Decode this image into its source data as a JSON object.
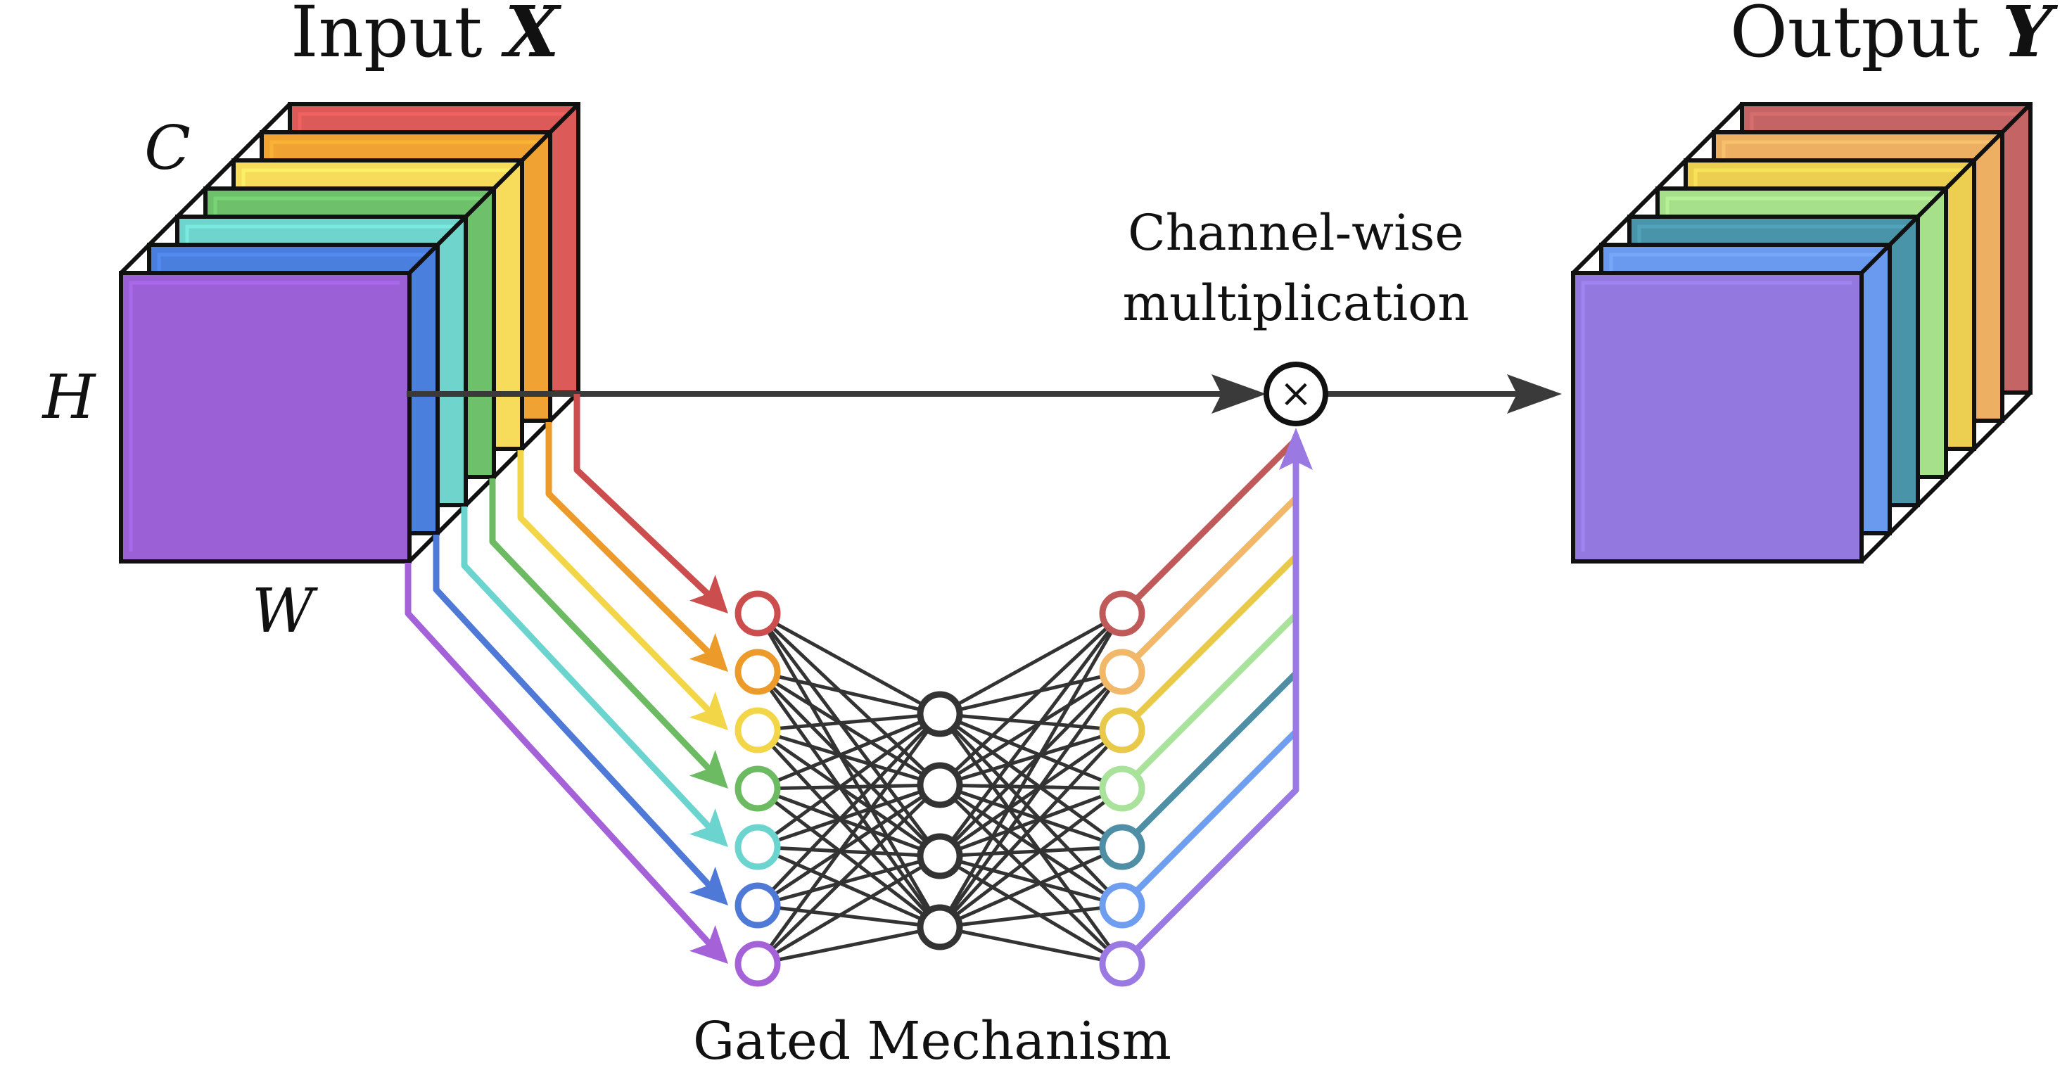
{
  "input": {
    "title_text": "Input",
    "title_var": "X",
    "dim_c": "C",
    "dim_h": "H",
    "dim_w": "W",
    "channel_colors": [
      "#9b5fd6",
      "#4a7fde",
      "#6fd4cc",
      "#6ec06a",
      "#f7dc5c",
      "#f0a232",
      "#dc5a58"
    ]
  },
  "output": {
    "title_text": "Output",
    "title_var": "Y",
    "channel_colors": [
      "#9378e0",
      "#6a9af0",
      "#4a94aa",
      "#a6e08a",
      "#eccf50",
      "#edb062",
      "#c46464"
    ]
  },
  "operation": {
    "label_line1": "Channel-wise",
    "label_line2": "multiplication",
    "symbol": "×"
  },
  "gate": {
    "label": "Gated Mechanism",
    "input_node_colors": [
      "#cc4d4d",
      "#ec9a2a",
      "#f2d648",
      "#6cba62",
      "#6cd4cf",
      "#4f79d6",
      "#a561d8"
    ],
    "hidden_node_count": 4,
    "output_node_colors": [
      "#c05a5a",
      "#f0b868",
      "#e9c94a",
      "#a9e29a",
      "#4f8fa6",
      "#6f9ef0",
      "#9a79e2"
    ],
    "edge_color": "#333333"
  }
}
